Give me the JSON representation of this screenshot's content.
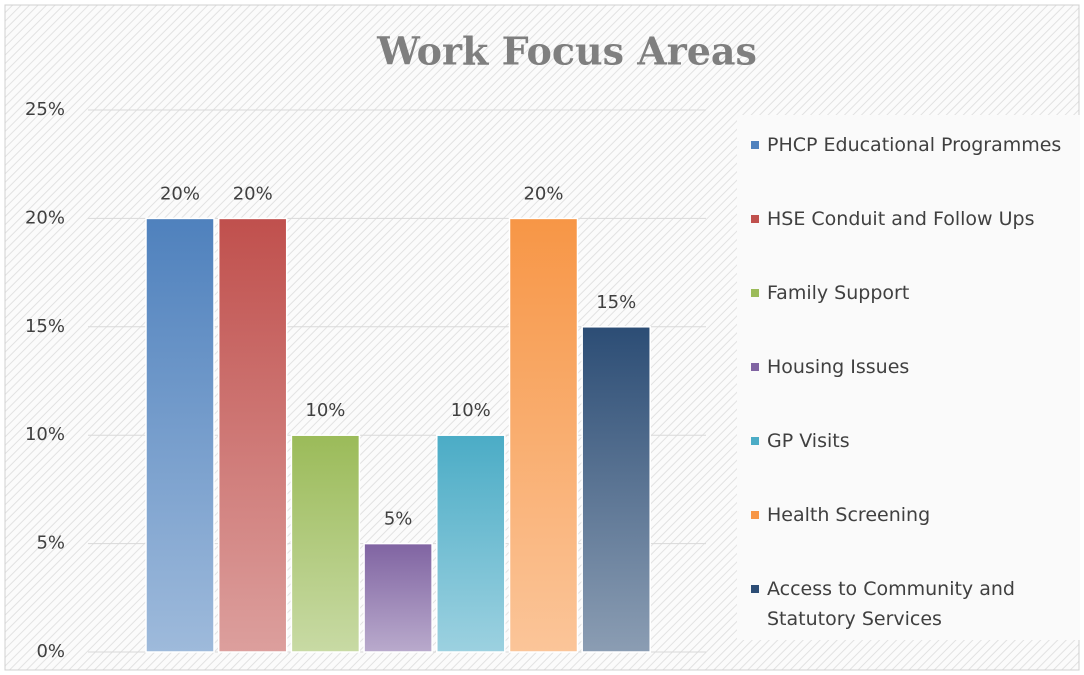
{
  "chart_data": {
    "type": "bar",
    "title": "Work Focus Areas",
    "categories": [
      null
    ],
    "series": [
      {
        "name": "PHCP Educational Programmes",
        "color": "#4f81bd",
        "values": [
          20
        ],
        "value_labels": [
          "20%"
        ]
      },
      {
        "name": "HSE Conduit and Follow Ups",
        "color": "#c0504d",
        "values": [
          20
        ],
        "value_labels": [
          "20%"
        ]
      },
      {
        "name": "Family Support",
        "color": "#9bbb59",
        "values": [
          10
        ],
        "value_labels": [
          "10%"
        ]
      },
      {
        "name": "Housing Issues",
        "color": "#8064a2",
        "values": [
          5
        ],
        "value_labels": [
          "5%"
        ]
      },
      {
        "name": "GP Visits",
        "color": "#4bacc6",
        "values": [
          10
        ],
        "value_labels": [
          "10%"
        ]
      },
      {
        "name": "Health Screening",
        "color": "#f79646",
        "values": [
          20
        ],
        "value_labels": [
          "20%"
        ]
      },
      {
        "name": "Access to Community and Statutory Services",
        "color": "#2c4d75",
        "values": [
          15
        ],
        "value_labels": [
          "15%"
        ]
      }
    ],
    "ylim": [
      0,
      25
    ],
    "yticks": [
      {
        "value": 0,
        "label": "0%"
      },
      {
        "value": 5,
        "label": "5%"
      },
      {
        "value": 10,
        "label": "10%"
      },
      {
        "value": 15,
        "label": "15%"
      },
      {
        "value": 20,
        "label": "20%"
      },
      {
        "value": 25,
        "label": "25%"
      }
    ],
    "grid": true,
    "legend": "right"
  }
}
